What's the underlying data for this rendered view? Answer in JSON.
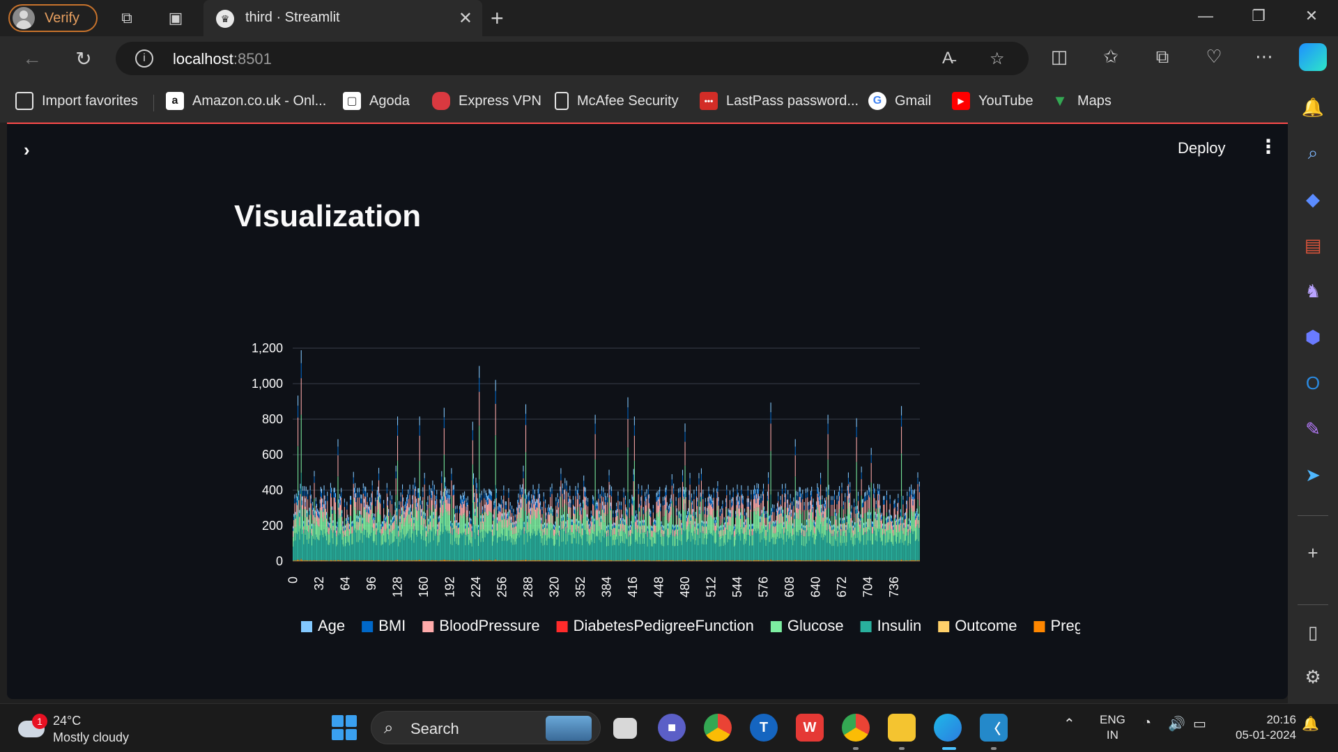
{
  "browser": {
    "profile_label": "Verify",
    "tab_title": "third · Streamlit",
    "url_host": "localhost",
    "url_port": ":8501"
  },
  "bookmarks": [
    {
      "label": "Import favorites",
      "icon": "import-icon",
      "color": "#e6e6e6"
    },
    {
      "label": "Amazon.co.uk - Onl...",
      "icon": "amazon-icon",
      "color": "#ffffff"
    },
    {
      "label": "Agoda",
      "icon": "agoda-icon",
      "color": "#ffffff"
    },
    {
      "label": "Express VPN",
      "icon": "expressvpn-icon",
      "color": "#da3940"
    },
    {
      "label": "McAfee Security",
      "icon": "document-icon",
      "color": "#e6e6e6"
    },
    {
      "label": "LastPass password...",
      "icon": "lastpass-icon",
      "color": "#d32d27"
    },
    {
      "label": "Gmail",
      "icon": "google-icon",
      "color": "#ffffff"
    },
    {
      "label": "YouTube",
      "icon": "youtube-icon",
      "color": "#ff0000"
    },
    {
      "label": "Maps",
      "icon": "maps-icon",
      "color": "#34a853"
    }
  ],
  "app": {
    "deploy_label": "Deploy",
    "page_title": "Visualization"
  },
  "chart_data": {
    "type": "bar",
    "stacked": true,
    "x_range": [
      0,
      767
    ],
    "x_ticks": [
      0,
      32,
      64,
      96,
      128,
      160,
      192,
      224,
      256,
      288,
      320,
      352,
      384,
      416,
      448,
      480,
      512,
      544,
      576,
      608,
      640,
      672,
      704,
      736
    ],
    "ylim": [
      0,
      1200
    ],
    "y_ticks": [
      0,
      200,
      400,
      600,
      800,
      1000,
      1200
    ],
    "y_tick_labels": [
      "0",
      "200",
      "400",
      "600",
      "800",
      "1,000",
      "1,200"
    ],
    "series": [
      {
        "name": "Age",
        "color": "#83c9ff"
      },
      {
        "name": "BMI",
        "color": "#0068c9"
      },
      {
        "name": "BloodPressure",
        "color": "#ffabab"
      },
      {
        "name": "DiabetesPedigreeFunction",
        "color": "#ff2b2b"
      },
      {
        "name": "Glucose",
        "color": "#7defa1"
      },
      {
        "name": "Insulin",
        "color": "#29b09d"
      },
      {
        "name": "Outcome",
        "color": "#ffd16a"
      },
      {
        "name": "Preg",
        "color": "#ff8700"
      }
    ],
    "peak_totals": [
      {
        "x": 6,
        "y": 950
      },
      {
        "x": 10,
        "y": 1210
      },
      {
        "x": 55,
        "y": 700
      },
      {
        "x": 128,
        "y": 830
      },
      {
        "x": 155,
        "y": 830
      },
      {
        "x": 185,
        "y": 880
      },
      {
        "x": 220,
        "y": 800
      },
      {
        "x": 228,
        "y": 1120
      },
      {
        "x": 248,
        "y": 1040
      },
      {
        "x": 285,
        "y": 900
      },
      {
        "x": 370,
        "y": 840
      },
      {
        "x": 410,
        "y": 940
      },
      {
        "x": 418,
        "y": 830
      },
      {
        "x": 480,
        "y": 790
      },
      {
        "x": 585,
        "y": 910
      },
      {
        "x": 615,
        "y": 700
      },
      {
        "x": 655,
        "y": 840
      },
      {
        "x": 690,
        "y": 820
      },
      {
        "x": 708,
        "y": 650
      },
      {
        "x": 745,
        "y": 890
      },
      {
        "x": 765,
        "y": 510
      }
    ],
    "typical_total_range": [
      200,
      450
    ],
    "legend_position": "bottom"
  },
  "taskbar": {
    "weather_temp": "24°C",
    "weather_cond": "Mostly cloudy",
    "weather_badge": "1",
    "search_label": "Search",
    "lang_top": "ENG",
    "lang_bottom": "IN",
    "time": "20:16",
    "date": "05-01-2024"
  }
}
